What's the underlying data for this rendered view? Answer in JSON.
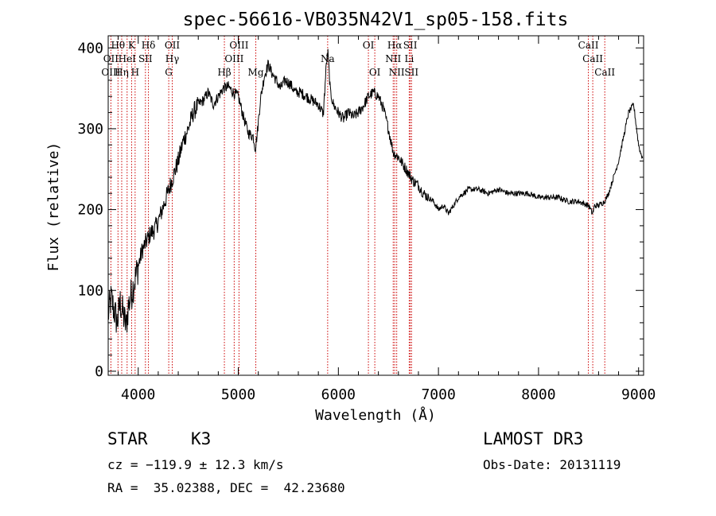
{
  "chart_data": {
    "type": "line",
    "title": "spec-56616-VB035N42V1_sp05-158.fits",
    "xlabel": "Wavelength (Å)",
    "ylabel": "Flux (relative)",
    "xlim": [
      3700,
      9050
    ],
    "ylim": [
      -5,
      415
    ],
    "xticks": [
      "4000",
      "5000",
      "6000",
      "7000",
      "8000",
      "9000"
    ],
    "yticks": [
      "0",
      "100",
      "200",
      "300",
      "400"
    ],
    "grid": false,
    "series": [
      {
        "x": [
          3700,
          3730,
          3760,
          3790,
          3820,
          3850,
          3880,
          3900,
          3930,
          3960,
          4000,
          4040,
          4080,
          4120,
          4160,
          4200,
          4240,
          4280,
          4320,
          4360,
          4400,
          4450,
          4500,
          4550,
          4600,
          4650,
          4700,
          4750,
          4800,
          4850,
          4900,
          4950,
          5000,
          5050,
          5100,
          5150,
          5170,
          5190,
          5220,
          5260,
          5300,
          5330,
          5370,
          5420,
          5470,
          5520,
          5570,
          5620,
          5680,
          5740,
          5800,
          5850,
          5880,
          5895,
          5905,
          5920,
          5950,
          6000,
          6050,
          6100,
          6150,
          6200,
          6250,
          6300,
          6350,
          6400,
          6450,
          6500,
          6550,
          6600,
          6650,
          6700,
          6750,
          6800,
          6850,
          6900,
          6950,
          7000,
          7050,
          7100,
          7150,
          7200,
          7300,
          7400,
          7500,
          7600,
          7700,
          7800,
          7900,
          8000,
          8100,
          8200,
          8300,
          8400,
          8500,
          8540,
          8560,
          8600,
          8660,
          8700,
          8750,
          8800,
          8850,
          8900,
          8950,
          8980,
          9000,
          9020,
          9040
        ],
        "y": [
          70,
          90,
          75,
          60,
          85,
          70,
          55,
          80,
          95,
          110,
          130,
          150,
          160,
          170,
          175,
          185,
          200,
          215,
          230,
          245,
          260,
          285,
          300,
          320,
          330,
          335,
          345,
          330,
          340,
          350,
          352,
          345,
          340,
          315,
          295,
          290,
          275,
          295,
          335,
          365,
          380,
          370,
          362,
          350,
          360,
          355,
          345,
          345,
          340,
          335,
          330,
          318,
          380,
          395,
          375,
          345,
          330,
          320,
          312,
          320,
          315,
          320,
          328,
          340,
          345,
          340,
          325,
          300,
          270,
          265,
          255,
          245,
          235,
          230,
          220,
          215,
          210,
          200,
          205,
          195,
          205,
          215,
          225,
          225,
          220,
          225,
          220,
          220,
          220,
          215,
          215,
          215,
          210,
          210,
          205,
          195,
          205,
          205,
          210,
          220,
          240,
          260,
          290,
          320,
          330,
          300,
          280,
          270,
          265
        ]
      }
    ],
    "line_labels": [
      {
        "text": "Hθ",
        "wl": 3798,
        "row": 0
      },
      {
        "text": "K",
        "wl": 3934,
        "row": 0
      },
      {
        "text": "Hδ",
        "wl": 4102,
        "row": 0
      },
      {
        "text": "OII",
        "wl": 4340,
        "row": 0
      },
      {
        "text": "OIII",
        "wl": 5007,
        "row": 0
      },
      {
        "text": "OI",
        "wl": 6300,
        "row": 0
      },
      {
        "text": "Hα",
        "wl": 6563,
        "row": 0
      },
      {
        "text": "SII",
        "wl": 6718,
        "row": 0
      },
      {
        "text": "CaII",
        "wl": 8498,
        "row": 0
      },
      {
        "text": "OII",
        "wl": 3727,
        "row": 1
      },
      {
        "text": "HeI",
        "wl": 3889,
        "row": 1
      },
      {
        "text": "SII",
        "wl": 4072,
        "row": 1
      },
      {
        "text": "Hγ",
        "wl": 4340,
        "row": 1
      },
      {
        "text": "OIII",
        "wl": 4959,
        "row": 1
      },
      {
        "text": "Na",
        "wl": 5893,
        "row": 1
      },
      {
        "text": "NII",
        "wl": 6548,
        "row": 1
      },
      {
        "text": "Li",
        "wl": 6708,
        "row": 1
      },
      {
        "text": "CaII",
        "wl": 8542,
        "row": 1
      },
      {
        "text": "OIII",
        "wl": 3727,
        "row": 2
      },
      {
        "text": "Hη",
        "wl": 3835,
        "row": 2
      },
      {
        "text": "H",
        "wl": 3969,
        "row": 2
      },
      {
        "text": "G",
        "wl": 4305,
        "row": 2
      },
      {
        "text": "Hβ",
        "wl": 4861,
        "row": 2
      },
      {
        "text": "Mg",
        "wl": 5175,
        "row": 2
      },
      {
        "text": "OI",
        "wl": 6364,
        "row": 2
      },
      {
        "text": "NII",
        "wl": 6583,
        "row": 2
      },
      {
        "text": "SII",
        "wl": 6731,
        "row": 2
      },
      {
        "text": "CaII",
        "wl": 8662,
        "row": 2
      }
    ],
    "line_markers_wl": [
      3727,
      3798,
      3835,
      3889,
      3934,
      3969,
      4072,
      4102,
      4305,
      4340,
      4861,
      4959,
      5007,
      5175,
      5893,
      6300,
      6364,
      6548,
      6563,
      6583,
      6708,
      6718,
      6731,
      8498,
      8542,
      8662
    ],
    "marker_color": "#cc0000"
  },
  "info": {
    "class_label": "STAR",
    "subclass": "K3",
    "survey": "LAMOST DR3",
    "cz": "cz = −119.9 ± 12.3 km/s",
    "obs_date": "Obs-Date: 20131119",
    "coords": "RA =  35.02388, DEC =  42.23680"
  }
}
